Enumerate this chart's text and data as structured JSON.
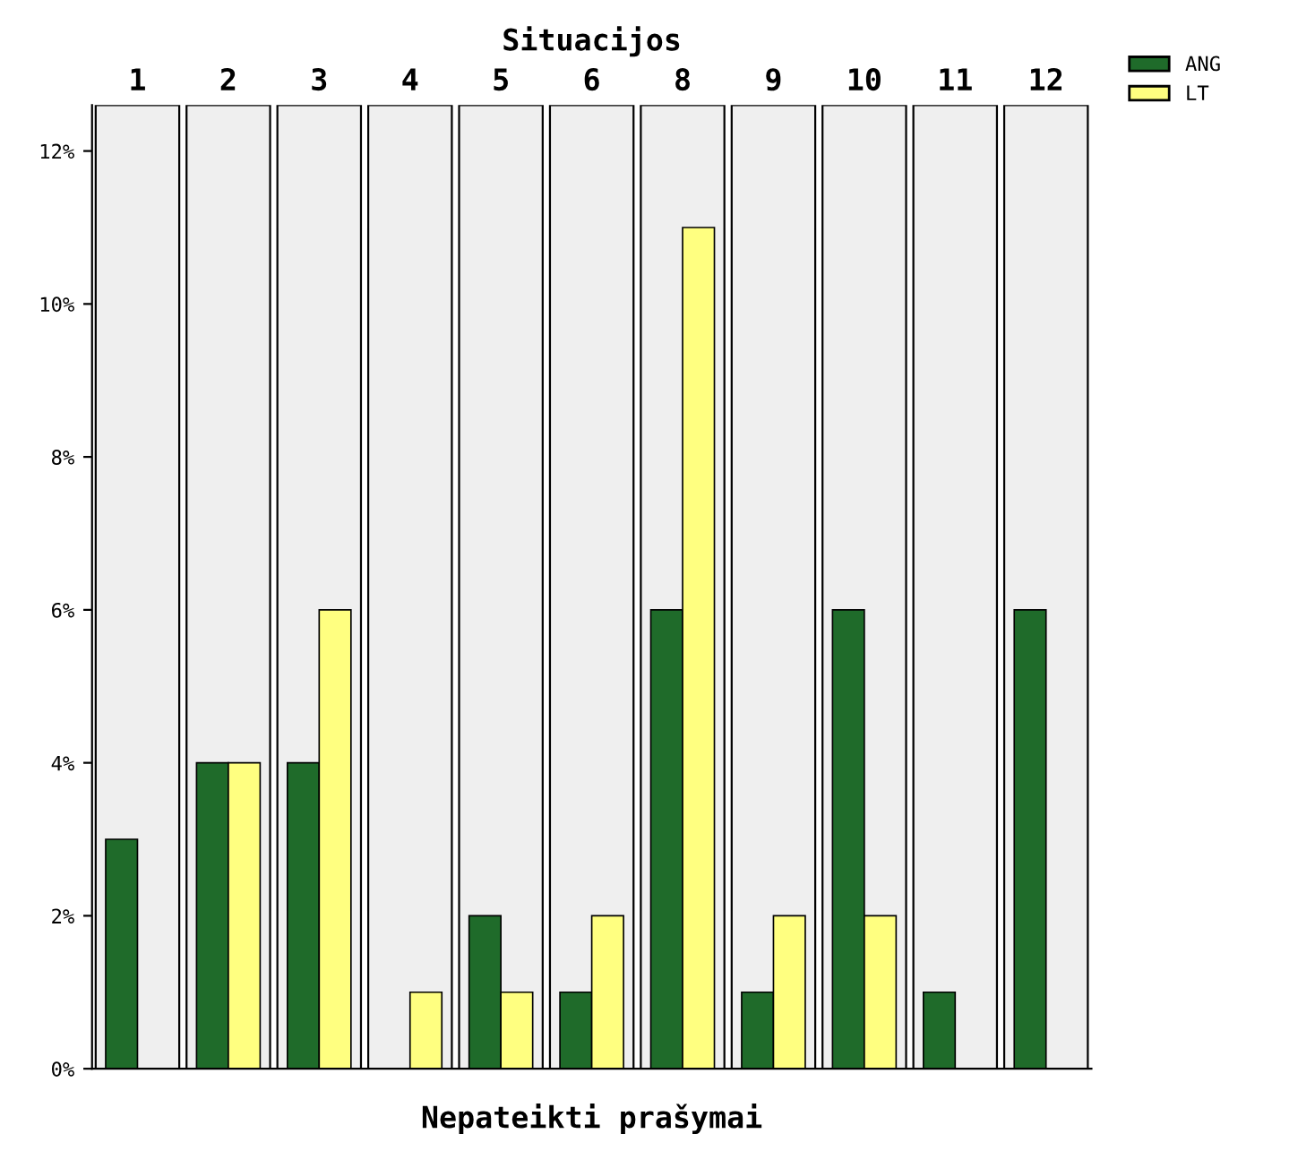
{
  "chart_data": {
    "type": "bar",
    "title": "Situacijos",
    "xlabel": "Nepateikti prašymai",
    "categories": [
      "1",
      "2",
      "3",
      "4",
      "5",
      "6",
      "8",
      "9",
      "10",
      "11",
      "12"
    ],
    "series": [
      {
        "name": "ANG",
        "color": "#1f6b2a",
        "values": [
          3,
          4,
          4,
          null,
          2,
          1,
          6,
          1,
          6,
          1,
          6
        ]
      },
      {
        "name": "LT",
        "color": "#ffff80",
        "values": [
          null,
          4,
          6,
          1,
          1,
          2,
          11,
          2,
          2,
          null,
          null
        ]
      }
    ],
    "ylim": [
      0,
      12.6
    ],
    "yticks": [
      {
        "value": 0,
        "label": "0%"
      },
      {
        "value": 2,
        "label": "2%"
      },
      {
        "value": 4,
        "label": "4%"
      },
      {
        "value": 6,
        "label": "6%"
      },
      {
        "value": 8,
        "label": "8%"
      },
      {
        "value": 10,
        "label": "10%"
      },
      {
        "value": 12,
        "label": "12%"
      }
    ],
    "grid": false,
    "legend": "top right"
  }
}
